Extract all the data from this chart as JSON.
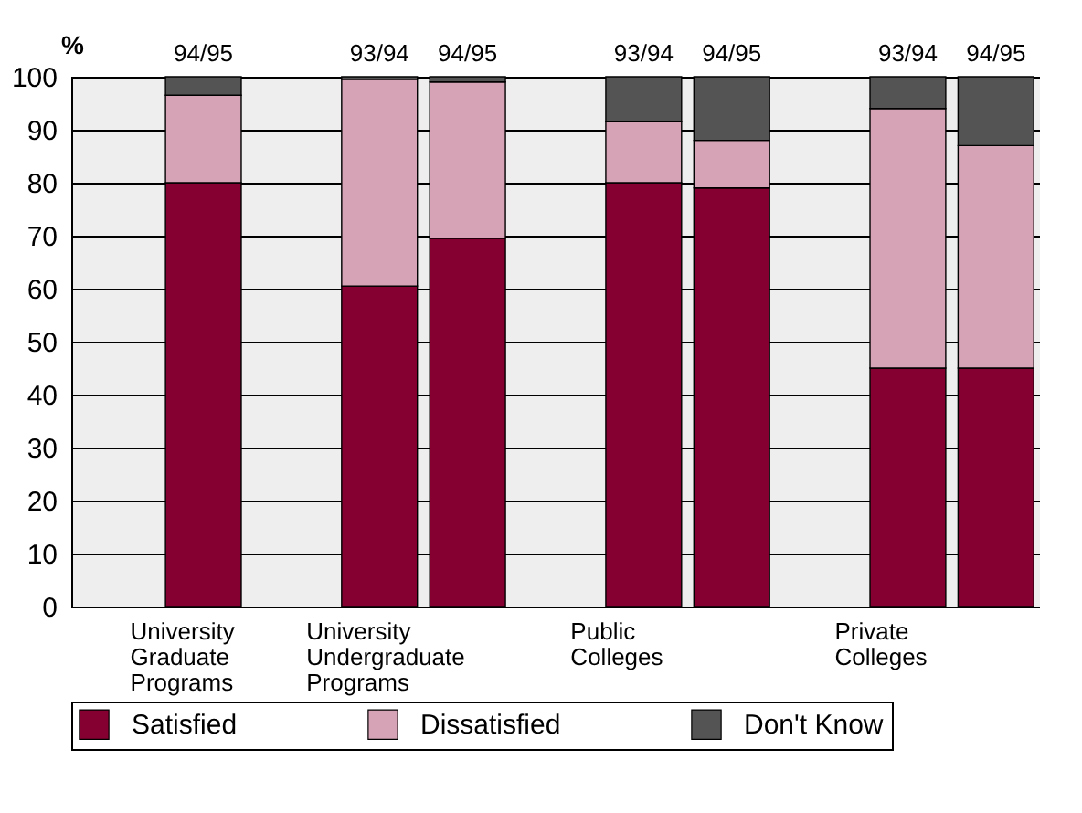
{
  "chart_data": {
    "type": "bar",
    "stacked": true,
    "ylabel": "%",
    "categories": [
      null,
      "94/95",
      null,
      "93/94",
      "94/95",
      null,
      "93/94",
      "94/95",
      null,
      "93/94",
      "94/95"
    ],
    "series": [
      {
        "name": "Satisfied",
        "color": "#850030",
        "values": [
          null,
          80,
          null,
          60.5,
          69.5,
          null,
          80,
          79,
          null,
          45,
          45
        ]
      },
      {
        "name": "Dissatisfied",
        "color": "#d5a3b5",
        "values": [
          null,
          16.5,
          null,
          39,
          29.5,
          null,
          11.5,
          9,
          null,
          49,
          42
        ]
      },
      {
        "name": "Don't Know",
        "color": "#545454",
        "values": [
          null,
          3.5,
          null,
          0.5,
          1,
          null,
          8.5,
          12,
          null,
          6,
          13
        ]
      }
    ],
    "annotations": [
      "University\nGraduate\nPrograms",
      "University\nUndergraduate\nPrograms",
      "Public\nColleges",
      "Private\nColleges"
    ],
    "ylim": [
      0,
      100
    ],
    "yticks": [
      0,
      10,
      20,
      30,
      40,
      50,
      60,
      70,
      80,
      90,
      100
    ],
    "grid": "y",
    "legend": "bottom"
  }
}
